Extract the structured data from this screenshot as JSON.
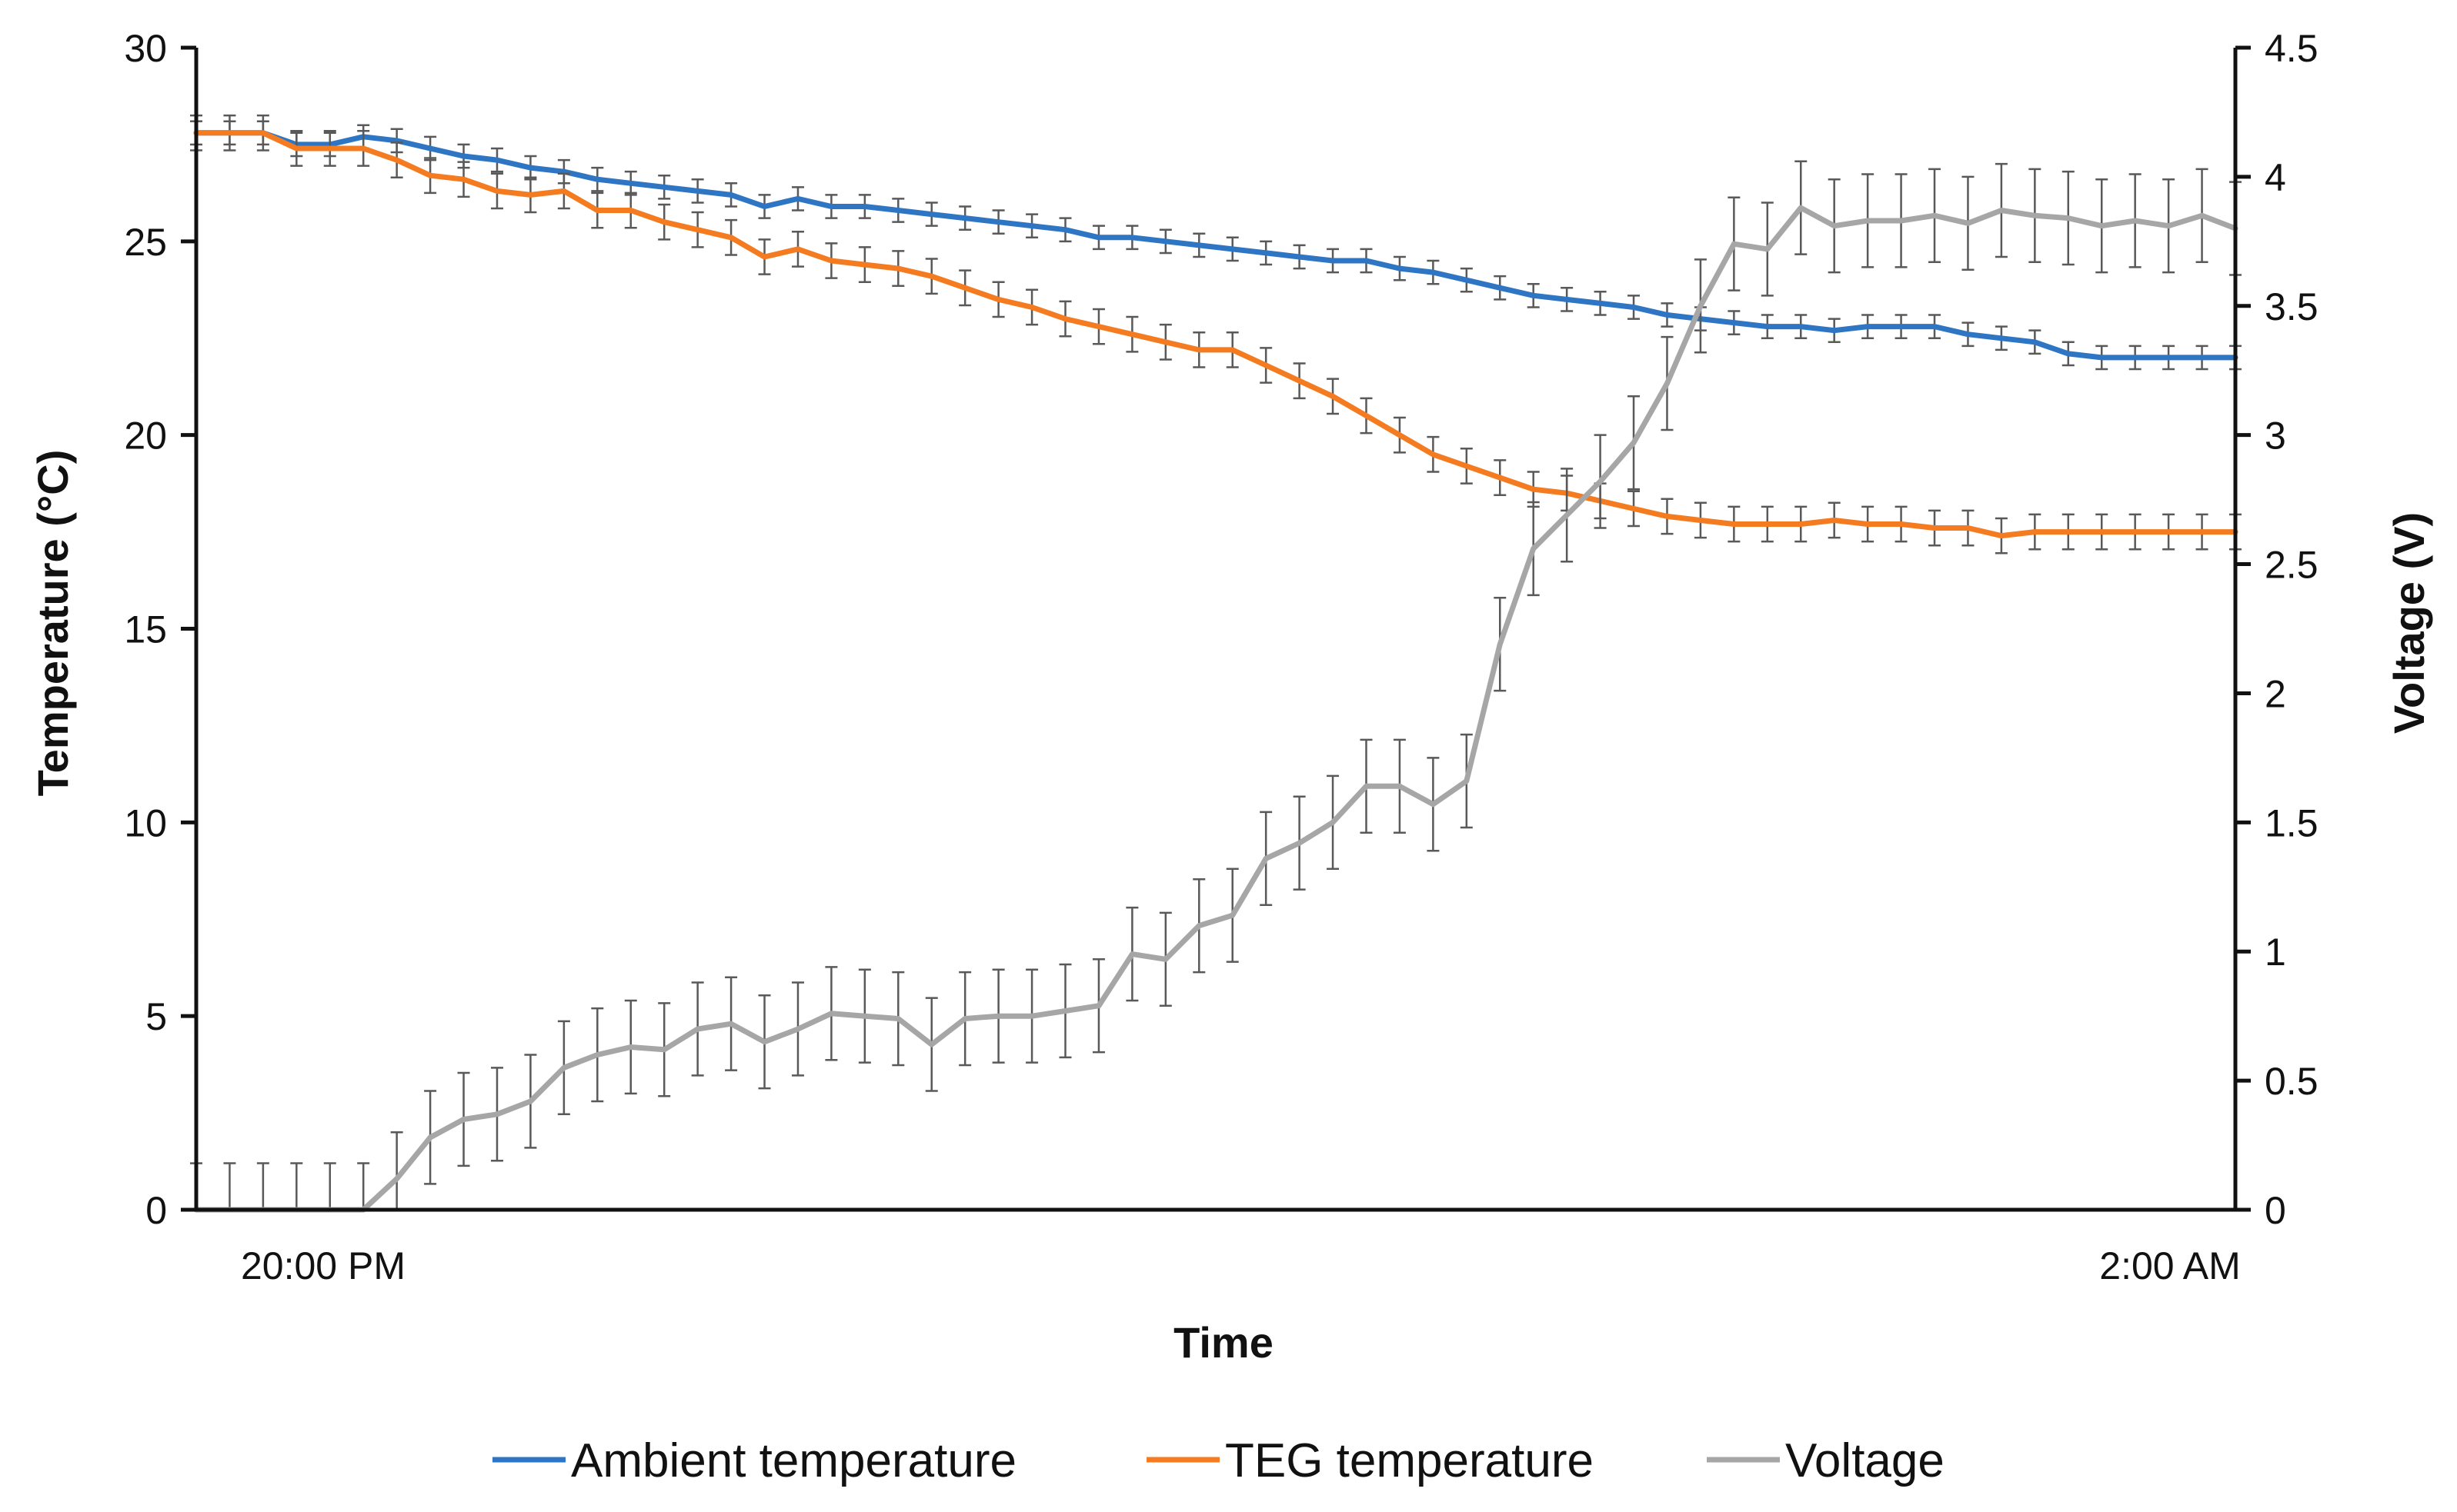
{
  "chart_data": {
    "type": "line",
    "title": "",
    "xlabel": "Time",
    "ylabel": "Temperature (°C)",
    "ylabel_right": "Voltage (V)",
    "x_tick_labels": [
      "20:00 PM",
      "2:00 AM"
    ],
    "x_count": 62,
    "ylim": [
      0,
      30
    ],
    "ylim_right": [
      0,
      4.5
    ],
    "yticks": [
      "0",
      "5",
      "10",
      "15",
      "20",
      "25",
      "30"
    ],
    "yticks_right": [
      "0",
      "0.5",
      "1",
      "1.5",
      "2",
      "2.5",
      "3",
      "3.5",
      "4",
      "4.5"
    ],
    "grid": false,
    "legend_position": "bottom",
    "series": [
      {
        "name": "Ambient temperature",
        "axis": "left",
        "color": "#2e75c4",
        "error": 0.3,
        "values": [
          27.8,
          27.8,
          27.8,
          27.5,
          27.5,
          27.7,
          27.6,
          27.4,
          27.2,
          27.1,
          26.9,
          26.8,
          26.6,
          26.5,
          26.4,
          26.3,
          26.2,
          25.9,
          26.1,
          25.9,
          25.9,
          25.8,
          25.7,
          25.6,
          25.5,
          25.4,
          25.3,
          25.1,
          25.1,
          25.0,
          24.9,
          24.8,
          24.7,
          24.6,
          24.5,
          24.5,
          24.3,
          24.2,
          24.0,
          23.8,
          23.6,
          23.5,
          23.4,
          23.3,
          23.1,
          23.0,
          22.9,
          22.8,
          22.8,
          22.7,
          22.8,
          22.8,
          22.8,
          22.6,
          22.5,
          22.4,
          22.1,
          22.0,
          22.0,
          22.0,
          22.0,
          22.0
        ]
      },
      {
        "name": "TEG temperature",
        "axis": "left",
        "color": "#f47b20",
        "error": 0.45,
        "values": [
          27.8,
          27.8,
          27.8,
          27.4,
          27.4,
          27.4,
          27.1,
          26.7,
          26.6,
          26.3,
          26.2,
          26.3,
          25.8,
          25.8,
          25.5,
          25.3,
          25.1,
          24.6,
          24.8,
          24.5,
          24.4,
          24.3,
          24.1,
          23.8,
          23.5,
          23.3,
          23.0,
          22.8,
          22.6,
          22.4,
          22.2,
          22.2,
          21.8,
          21.4,
          21.0,
          20.5,
          20.0,
          19.5,
          19.2,
          18.9,
          18.6,
          18.5,
          18.3,
          18.1,
          17.9,
          17.8,
          17.7,
          17.7,
          17.7,
          17.8,
          17.7,
          17.7,
          17.6,
          17.6,
          17.4,
          17.5,
          17.5,
          17.5,
          17.5,
          17.5,
          17.5,
          17.5
        ]
      },
      {
        "name": "Voltage",
        "axis": "right",
        "color": "#a6a6a6",
        "error": 0.18,
        "values": [
          0,
          0,
          0,
          0,
          0,
          0,
          0.12,
          0.28,
          0.35,
          0.37,
          0.42,
          0.55,
          0.6,
          0.63,
          0.62,
          0.7,
          0.72,
          0.65,
          0.7,
          0.76,
          0.75,
          0.74,
          0.64,
          0.74,
          0.75,
          0.75,
          0.77,
          0.79,
          0.99,
          0.97,
          1.1,
          1.14,
          1.36,
          1.42,
          1.5,
          1.64,
          1.64,
          1.57,
          1.66,
          2.19,
          2.56,
          2.69,
          2.82,
          2.97,
          3.2,
          3.5,
          3.74,
          3.72,
          3.88,
          3.81,
          3.83,
          3.83,
          3.85,
          3.82,
          3.87,
          3.85,
          3.84,
          3.81,
          3.83,
          3.81,
          3.85,
          3.8
        ]
      }
    ]
  },
  "legend": {
    "items": [
      "Ambient temperature",
      "TEG temperature",
      "Voltage"
    ]
  }
}
